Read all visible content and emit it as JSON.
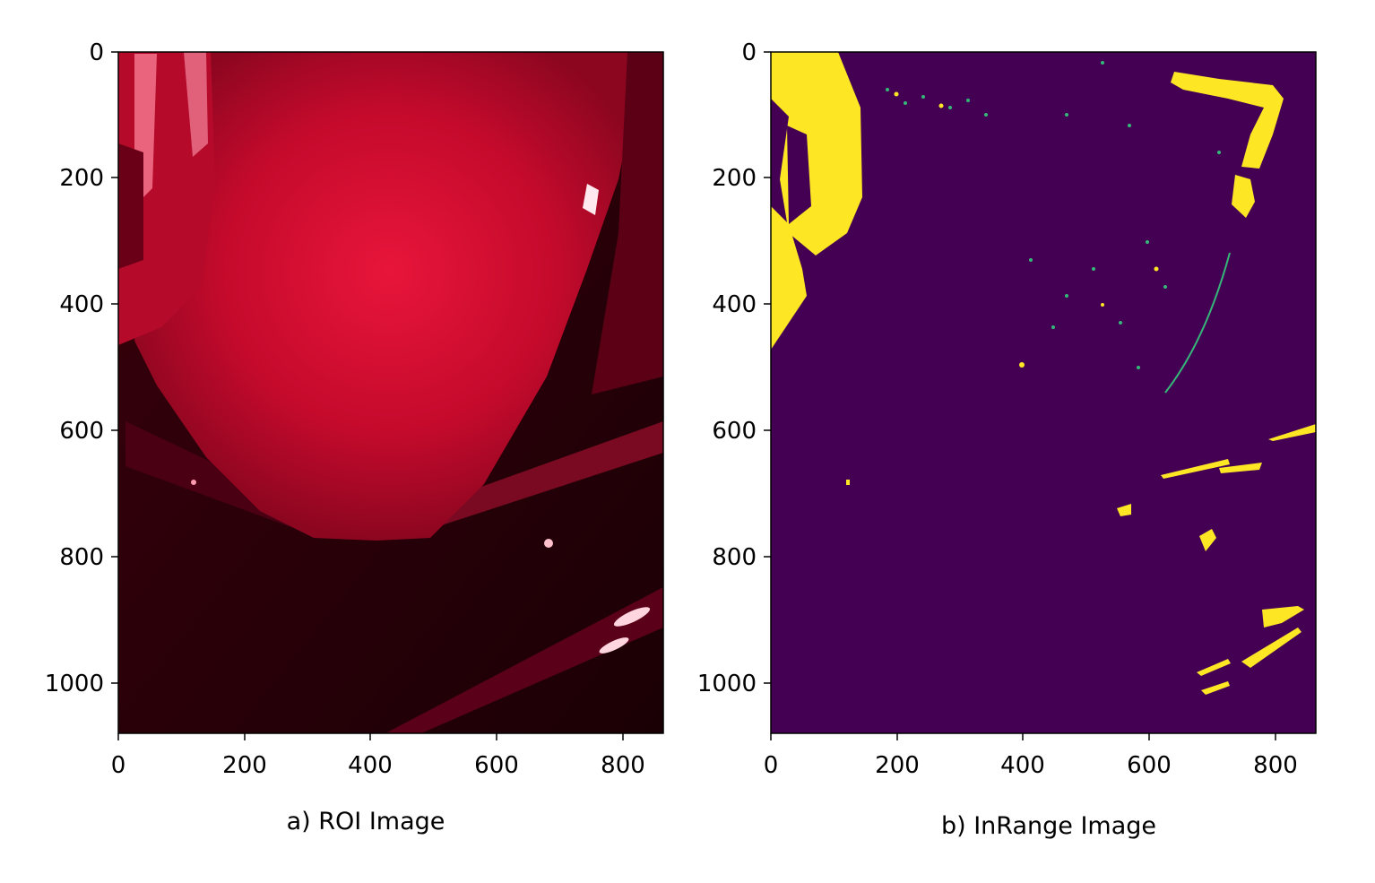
{
  "panels": [
    {
      "id": "roi",
      "caption": "a) ROI Image",
      "xticks": [
        "0",
        "200",
        "400",
        "600",
        "800"
      ],
      "yticks": [
        "0",
        "200",
        "400",
        "600",
        "800",
        "1000"
      ],
      "xlim": [
        0,
        865
      ],
      "ylim": [
        1080,
        0
      ],
      "colors": {
        "background": "#2a0008",
        "object": "#d20a2e",
        "highlight": "#ff6a84"
      }
    },
    {
      "id": "inrange",
      "caption": "b) InRange Image",
      "xticks": [
        "0",
        "200",
        "400",
        "600",
        "800"
      ],
      "yticks": [
        "0",
        "200",
        "400",
        "600",
        "800",
        "1000"
      ],
      "xlim": [
        0,
        865
      ],
      "ylim": [
        1080,
        0
      ],
      "colors": {
        "background": "#440154",
        "mask": "#fde725",
        "edge": "#35b779"
      }
    }
  ]
}
